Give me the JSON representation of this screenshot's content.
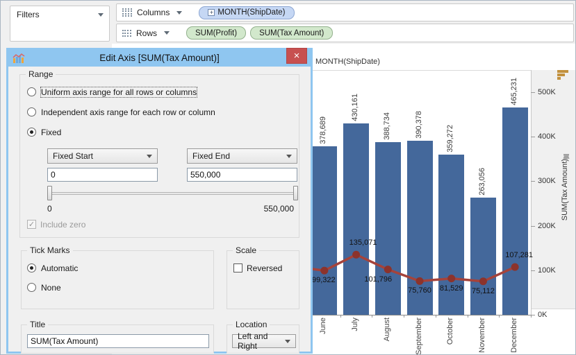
{
  "shelves": {
    "filters": {
      "label": "Filters"
    },
    "columns": {
      "label": "Columns",
      "pills": [
        {
          "label": "MONTH(ShipDate)",
          "expand_glyph": "+"
        }
      ]
    },
    "rows": {
      "label": "Rows",
      "pills": [
        {
          "label": "SUM(Profit)"
        },
        {
          "label": "SUM(Tax Amount)"
        }
      ]
    }
  },
  "dialog": {
    "title": "Edit Axis [SUM(Tax Amount)]",
    "close_glyph": "×",
    "range": {
      "legend": "Range",
      "options": [
        {
          "label": "Uniform axis range for all rows or columns",
          "selected": false,
          "focused": true
        },
        {
          "label": "Independent axis range for each row or column",
          "selected": false,
          "focused": false
        },
        {
          "label": "Fixed",
          "selected": true,
          "focused": false
        }
      ],
      "fixed_start": {
        "dropdown": "Fixed Start",
        "value": "0"
      },
      "fixed_end": {
        "dropdown": "Fixed End",
        "value": "550,000"
      },
      "slider": {
        "min_label": "0",
        "max_label": "550,000"
      },
      "include_zero": {
        "label": "Include zero",
        "checked": true,
        "disabled": true
      }
    },
    "tick_marks": {
      "legend": "Tick Marks",
      "options": [
        {
          "label": "Automatic",
          "selected": true
        },
        {
          "label": "None",
          "selected": false
        }
      ]
    },
    "scale": {
      "legend": "Scale",
      "reversed": {
        "label": "Reversed",
        "checked": false
      }
    },
    "title_group": {
      "legend": "Title",
      "value": "SUM(Tax Amount)"
    },
    "location_group": {
      "legend": "Location",
      "value": "Left and Right"
    }
  },
  "chart_data": {
    "type": "bar",
    "subtype": "dual-axis bar + line",
    "column_header": "MONTH(ShipDate)",
    "categories": [
      "June",
      "July",
      "August",
      "September",
      "October",
      "November",
      "December"
    ],
    "series": [
      {
        "name": "SUM(Profit)",
        "type": "bar",
        "color": "#44689b",
        "values": [
          378689,
          430161,
          388734,
          390378,
          359272,
          263056,
          465231
        ],
        "labels": [
          "378,689",
          "430,161",
          "388,734",
          "390,378",
          "359,272",
          "263,056",
          "465,231"
        ]
      },
      {
        "name": "SUM(Tax Amount)",
        "type": "line",
        "color": "#a5433b",
        "marker_color": "#8c332c",
        "values": [
          99322,
          135071,
          101796,
          75760,
          81529,
          75112,
          107281
        ],
        "labels": [
          "99,322",
          "135,071",
          "101,796",
          "75,760",
          "81,529",
          "75,112",
          "107,281"
        ],
        "label_placement": [
          "below",
          "above",
          "below",
          "below",
          "below",
          "below",
          "above"
        ],
        "label_dx": [
          -1,
          10,
          -14,
          0,
          0,
          0,
          6
        ],
        "edge_entry_value": 104000
      }
    ],
    "y_axis": {
      "title": "SUM(Tax Amount)",
      "position": "right",
      "range": [
        0,
        550000
      ],
      "ticks": [
        {
          "label": "0K",
          "value": 0
        },
        {
          "label": "100K",
          "value": 100000
        },
        {
          "label": "200K",
          "value": 200000
        },
        {
          "label": "300K",
          "value": 300000
        },
        {
          "label": "400K",
          "value": 400000
        },
        {
          "label": "500K",
          "value": 500000
        }
      ]
    },
    "grid": false,
    "legend": "none",
    "colors": {
      "bar": "#44689b",
      "line": "#a5433b",
      "marker": "#8c332c"
    }
  },
  "icons": {
    "sort": "sort-descending-icon",
    "pin": "pushpin-icon",
    "dialog": "chart-icon"
  },
  "theme": {
    "titlebar_blue": "#8fc6f0",
    "close_red": "#c75050",
    "pill_green": "#d2e8cc",
    "pill_blue": "#c5d7f4",
    "panel_gray": "#f0f0f0"
  }
}
